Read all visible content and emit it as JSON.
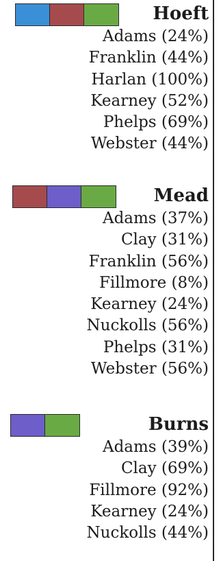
{
  "colors": {
    "blue": "#3a8fd6",
    "red": "#a54b4e",
    "green": "#6aaa45",
    "purple": "#6d5ec9"
  },
  "candidates": [
    {
      "name": "Hoeft",
      "swatches": [
        "#3a8fd6",
        "#a54b4e",
        "#6aaa45"
      ],
      "counties": [
        "Adams (24%)",
        "Franklin (44%)",
        "Harlan (100%)",
        "Kearney (52%)",
        "Phelps (69%)",
        "Webster (44%)"
      ]
    },
    {
      "name": "Mead",
      "swatches": [
        "#a54b4e",
        "#6d5ec9",
        "#6aaa45"
      ],
      "counties": [
        "Adams (37%)",
        "Clay (31%)",
        "Franklin (56%)",
        "Fillmore (8%)",
        "Kearney (24%)",
        "Nuckolls (56%)",
        "Phelps (31%)",
        "Webster (56%)"
      ]
    },
    {
      "name": "Burns",
      "swatches": [
        "#6d5ec9",
        "#6aaa45"
      ],
      "counties": [
        "Adams (39%)",
        "Clay (69%)",
        "Fillmore (92%)",
        "Kearney (24%)",
        "Nuckolls (44%)"
      ]
    }
  ]
}
